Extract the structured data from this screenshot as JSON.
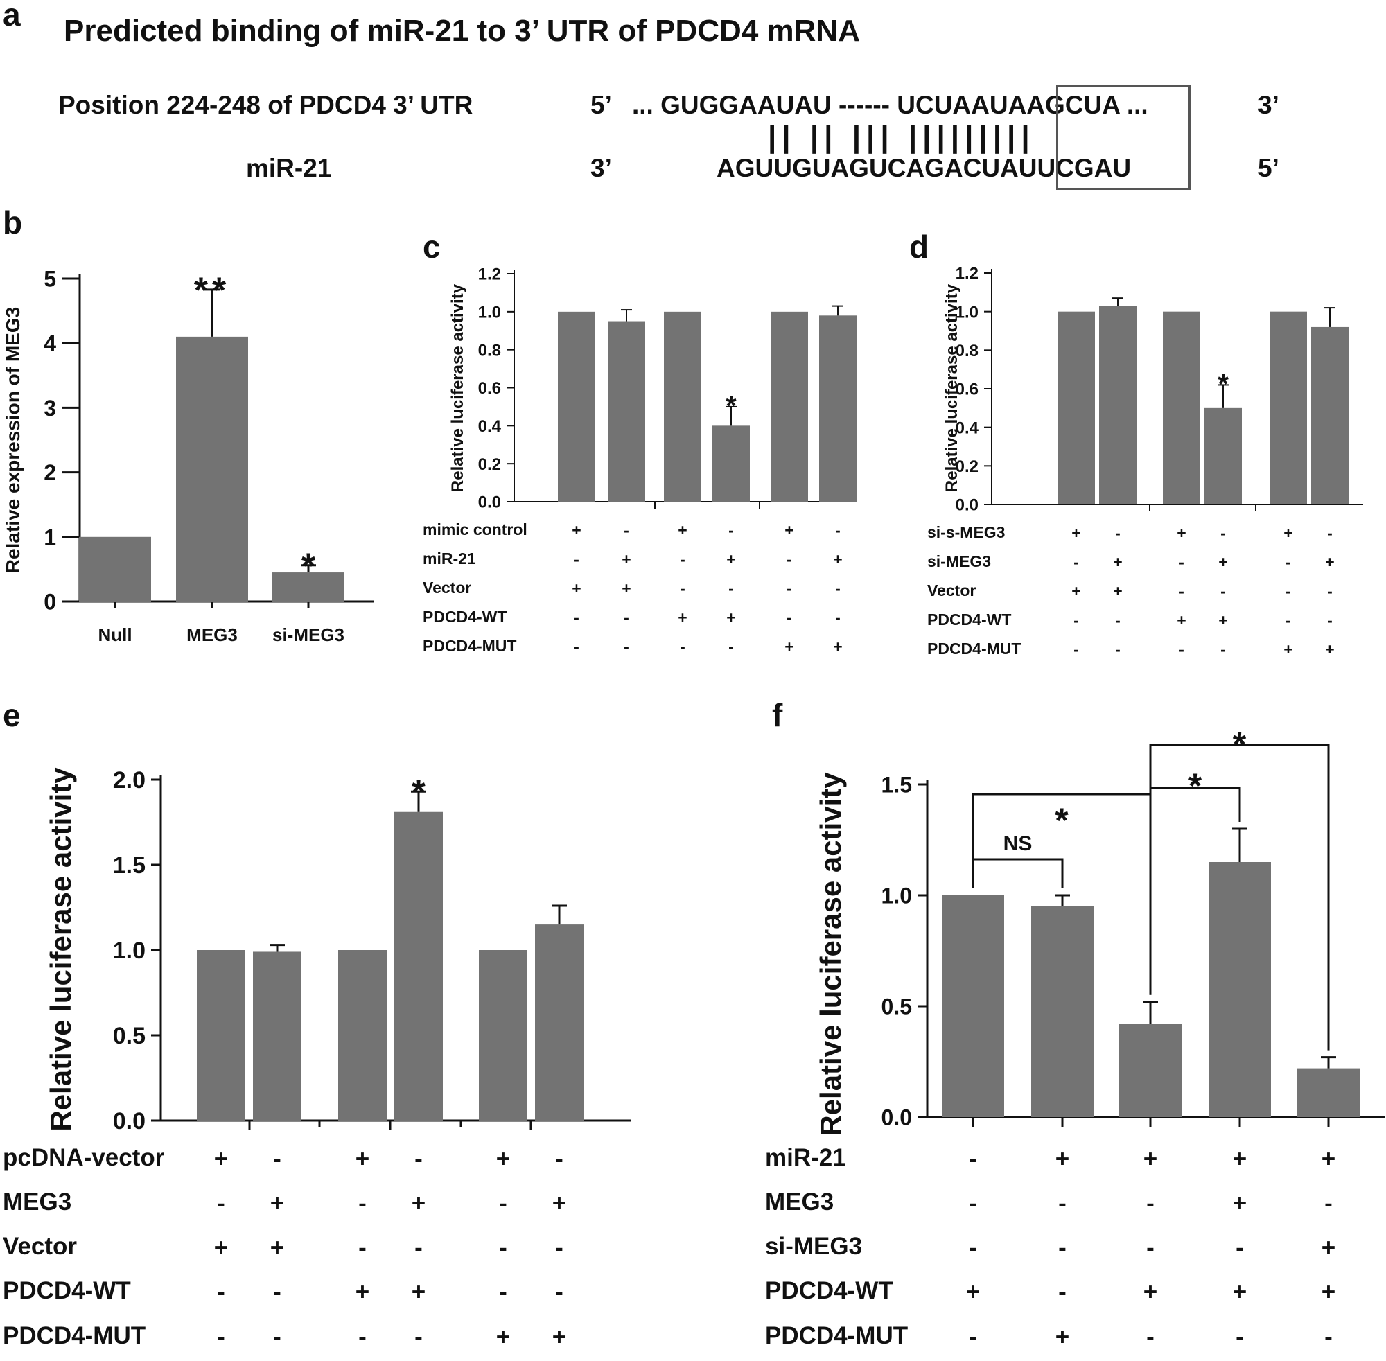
{
  "panel_a": {
    "letter": "a",
    "title": "Predicted binding of miR-21 to 3’ UTR of PDCD4 mRNA",
    "row1_label": "Position 224-248 of PDCD4 3’ UTR",
    "row1_end5": "5’",
    "row1_seq": "... GUGGAAUAU ------ UCUAAUAAGCUA ...",
    "row1_end3": "3’",
    "pairs": "|| || ||| |||||||||",
    "row2_label": "miR-21",
    "row2_end3": "3’",
    "row2_seq": "AGUUGUAGUCAGACUAUUCGAU",
    "row2_end5": "5’"
  },
  "chart_data": [
    {
      "id": "b",
      "type": "bar",
      "letter": "b",
      "ylabel": "Relative expression of MEG3",
      "ylim": [
        0,
        5
      ],
      "yticks": [
        0,
        1,
        2,
        3,
        4,
        5
      ],
      "categories": [
        "Null",
        "MEG3",
        "si-MEG3"
      ],
      "values": [
        1.0,
        4.1,
        0.45
      ],
      "errors": [
        0,
        0.73,
        0.11
      ],
      "annotations": [
        "",
        "**",
        "*"
      ]
    },
    {
      "id": "c",
      "type": "bar",
      "letter": "c",
      "ylabel": "Relative luciferase activity",
      "ylim": [
        0,
        1.2
      ],
      "yticks": [
        "0.0",
        "0.2",
        "0.4",
        "0.6",
        "0.8",
        "1.0",
        "1.2"
      ],
      "values": [
        1.0,
        0.95,
        1.0,
        0.4,
        1.0,
        0.98
      ],
      "errors": [
        0,
        0.06,
        0,
        0.1,
        0,
        0.05
      ],
      "annotations": [
        "",
        "",
        "",
        "*",
        "",
        ""
      ],
      "conditions": [
        {
          "label": "mimic control",
          "signs": [
            "+",
            "-",
            "+",
            "-",
            "+",
            "-"
          ]
        },
        {
          "label": "miR-21",
          "signs": [
            "-",
            "+",
            "-",
            "+",
            "-",
            "+"
          ]
        },
        {
          "label": "Vector",
          "signs": [
            "+",
            "+",
            "-",
            "-",
            "-",
            "-"
          ]
        },
        {
          "label": "PDCD4-WT",
          "signs": [
            "-",
            "-",
            "+",
            "+",
            "-",
            "-"
          ]
        },
        {
          "label": "PDCD4-MUT",
          "signs": [
            "-",
            "-",
            "-",
            "-",
            "+",
            "+"
          ]
        }
      ]
    },
    {
      "id": "d",
      "type": "bar",
      "letter": "d",
      "ylabel": "Relative luciferase activity",
      "ylim": [
        0,
        1.2
      ],
      "yticks": [
        "0.0",
        "0.2",
        "0.4",
        "0.6",
        "0.8",
        "1.0",
        "1.2"
      ],
      "values": [
        1.0,
        1.03,
        1.0,
        0.5,
        1.0,
        0.92
      ],
      "errors": [
        0,
        0.04,
        0,
        0.12,
        0,
        0.1
      ],
      "annotations": [
        "",
        "",
        "",
        "*",
        "",
        ""
      ],
      "conditions": [
        {
          "label": "si-s-MEG3",
          "signs": [
            "+",
            "-",
            "+",
            "-",
            "+",
            "-"
          ]
        },
        {
          "label": "si-MEG3",
          "signs": [
            "-",
            "+",
            "-",
            "+",
            "-",
            "+"
          ]
        },
        {
          "label": "Vector",
          "signs": [
            "+",
            "+",
            "-",
            "-",
            "-",
            "-"
          ]
        },
        {
          "label": "PDCD4-WT",
          "signs": [
            "-",
            "-",
            "+",
            "+",
            "-",
            "-"
          ]
        },
        {
          "label": "PDCD4-MUT",
          "signs": [
            "-",
            "-",
            "-",
            "-",
            "+",
            "+"
          ]
        }
      ]
    },
    {
      "id": "e",
      "type": "bar",
      "letter": "e",
      "ylabel": "Relative luciferase activity",
      "ylim": [
        0,
        2.0
      ],
      "yticks": [
        "0.0",
        "0.5",
        "1.0",
        "1.5",
        "2.0"
      ],
      "values": [
        1.0,
        0.99,
        1.0,
        1.81,
        1.0,
        1.15
      ],
      "errors": [
        0,
        0.04,
        0,
        0.12,
        0,
        0.11
      ],
      "annotations": [
        "",
        "",
        "",
        "*",
        "",
        ""
      ],
      "conditions": [
        {
          "label": "pcDNA-vector",
          "signs": [
            "+",
            "-",
            "+",
            "-",
            "+",
            "-"
          ]
        },
        {
          "label": "MEG3",
          "signs": [
            "-",
            "+",
            "-",
            "+",
            "-",
            "+"
          ]
        },
        {
          "label": "Vector",
          "signs": [
            "+",
            "+",
            "-",
            "-",
            "-",
            "-"
          ]
        },
        {
          "label": "PDCD4-WT",
          "signs": [
            "-",
            "-",
            "+",
            "+",
            "-",
            "-"
          ]
        },
        {
          "label": "PDCD4-MUT",
          "signs": [
            "-",
            "-",
            "-",
            "-",
            "+",
            "+"
          ]
        }
      ]
    },
    {
      "id": "f",
      "type": "bar",
      "letter": "f",
      "ylabel": "Relative luciferase activity",
      "ylim": [
        0,
        1.5
      ],
      "yticks": [
        "0.0",
        "0.5",
        "1.0",
        "1.5"
      ],
      "values": [
        1.0,
        0.95,
        0.42,
        1.15,
        0.22
      ],
      "errors": [
        0,
        0.05,
        0.1,
        0.15,
        0.05
      ],
      "annotations": [
        "",
        "",
        "",
        "",
        ""
      ],
      "brackets": [
        {
          "from": 0,
          "to": 1,
          "label": "NS"
        },
        {
          "from": 0,
          "to": 2,
          "label": "*"
        },
        {
          "from": 2,
          "to": 3,
          "label": "*"
        },
        {
          "from": 2,
          "to": 4,
          "label": "*"
        }
      ],
      "conditions": [
        {
          "label": "miR-21",
          "signs": [
            "-",
            "+",
            "+",
            "+",
            "+"
          ]
        },
        {
          "label": "MEG3",
          "signs": [
            "-",
            "-",
            "-",
            "+",
            "-"
          ]
        },
        {
          "label": "si-MEG3",
          "signs": [
            "-",
            "-",
            "-",
            "-",
            "+"
          ]
        },
        {
          "label": "PDCD4-WT",
          "signs": [
            "+",
            "-",
            "+",
            "+",
            "+"
          ]
        },
        {
          "label": "PDCD4-MUT",
          "signs": [
            "-",
            "+",
            "-",
            "-",
            "-"
          ]
        }
      ]
    }
  ]
}
